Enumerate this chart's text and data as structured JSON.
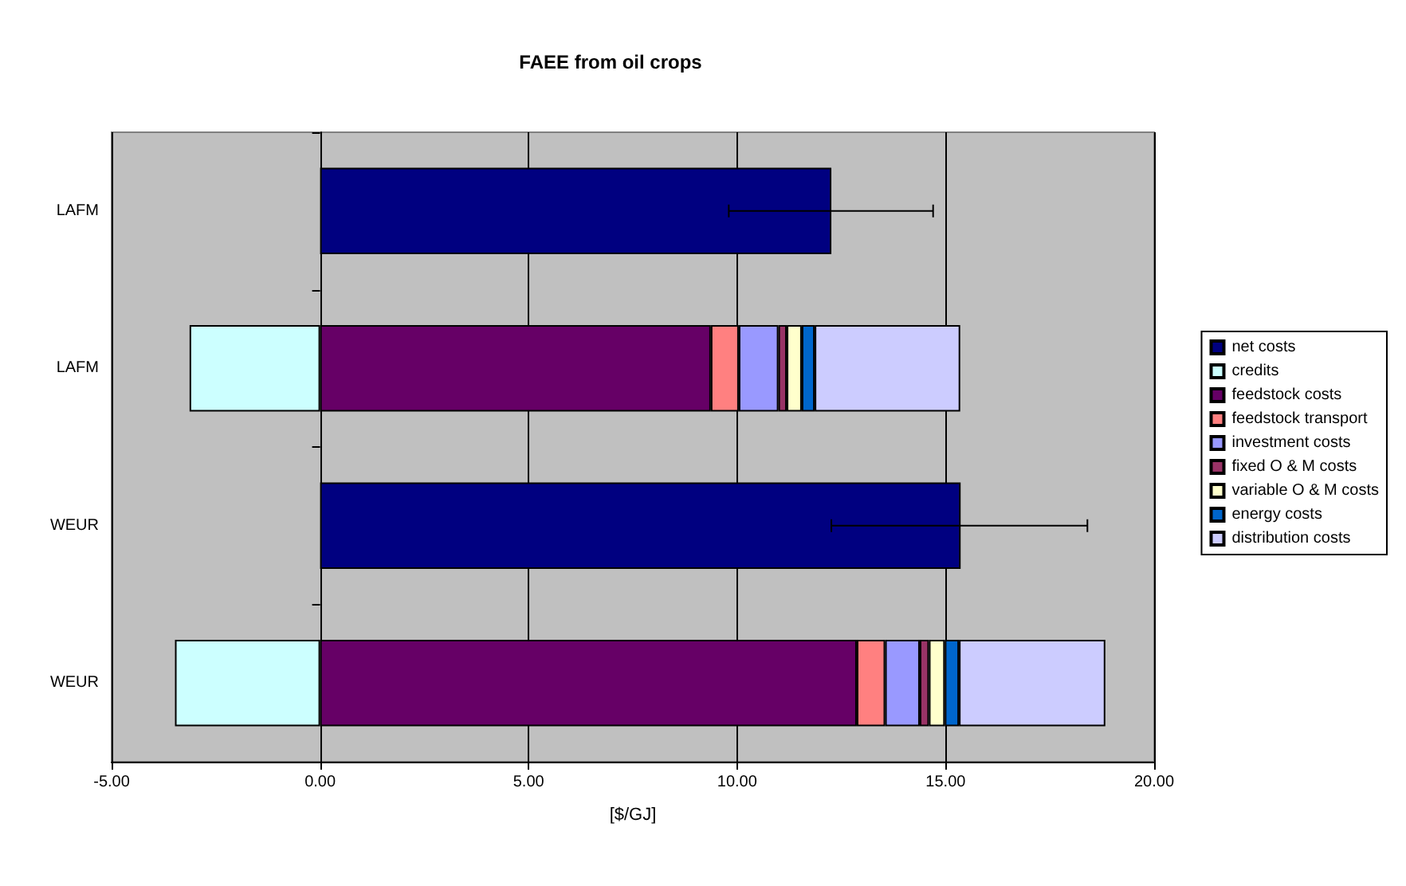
{
  "chart_data": {
    "type": "bar",
    "orientation": "horizontal",
    "stacked": true,
    "title": "FAEE from oil crops",
    "xlabel": "[$/GJ]",
    "categories": [
      "LAFM",
      "LAFM",
      "WEUR",
      "WEUR"
    ],
    "series": [
      {
        "name": "net costs",
        "color": "#000080",
        "values": [
          12.26,
          null,
          15.36,
          null
        ],
        "errors": [
          [
            9.8,
            14.7
          ],
          null,
          [
            12.26,
            18.4
          ],
          null
        ]
      },
      {
        "name": "credits",
        "color": "#ccffff",
        "values": [
          null,
          -3.13,
          null,
          -3.48
        ]
      },
      {
        "name": "feedstock costs",
        "color": "#660066",
        "values": [
          null,
          9.37,
          null,
          12.87
        ]
      },
      {
        "name": "feedstock transport",
        "color": "#ff8080",
        "values": [
          null,
          0.67,
          null,
          0.68
        ]
      },
      {
        "name": "investment costs",
        "color": "#9999ff",
        "values": [
          null,
          0.95,
          null,
          0.83
        ]
      },
      {
        "name": "fixed O & M costs",
        "color": "#993366",
        "values": [
          null,
          0.2,
          null,
          0.22
        ]
      },
      {
        "name": "variable O & M costs",
        "color": "#ffffcc",
        "values": [
          null,
          0.36,
          null,
          0.38
        ]
      },
      {
        "name": "energy costs",
        "color": "#0066cc",
        "values": [
          null,
          0.31,
          null,
          0.34
        ]
      },
      {
        "name": "distribution costs",
        "color": "#ccccff",
        "values": [
          null,
          3.49,
          null,
          3.51
        ]
      }
    ],
    "xlim": [
      -5,
      20
    ],
    "xticks": [
      {
        "value": -5,
        "label": "-5.00"
      },
      {
        "value": 0,
        "label": "0.00"
      },
      {
        "value": 5,
        "label": "5.00"
      },
      {
        "value": 10,
        "label": "10.00"
      },
      {
        "value": 15,
        "label": "15.00"
      },
      {
        "value": 20,
        "label": "20.00"
      }
    ],
    "grid": "x",
    "legend": "right"
  }
}
